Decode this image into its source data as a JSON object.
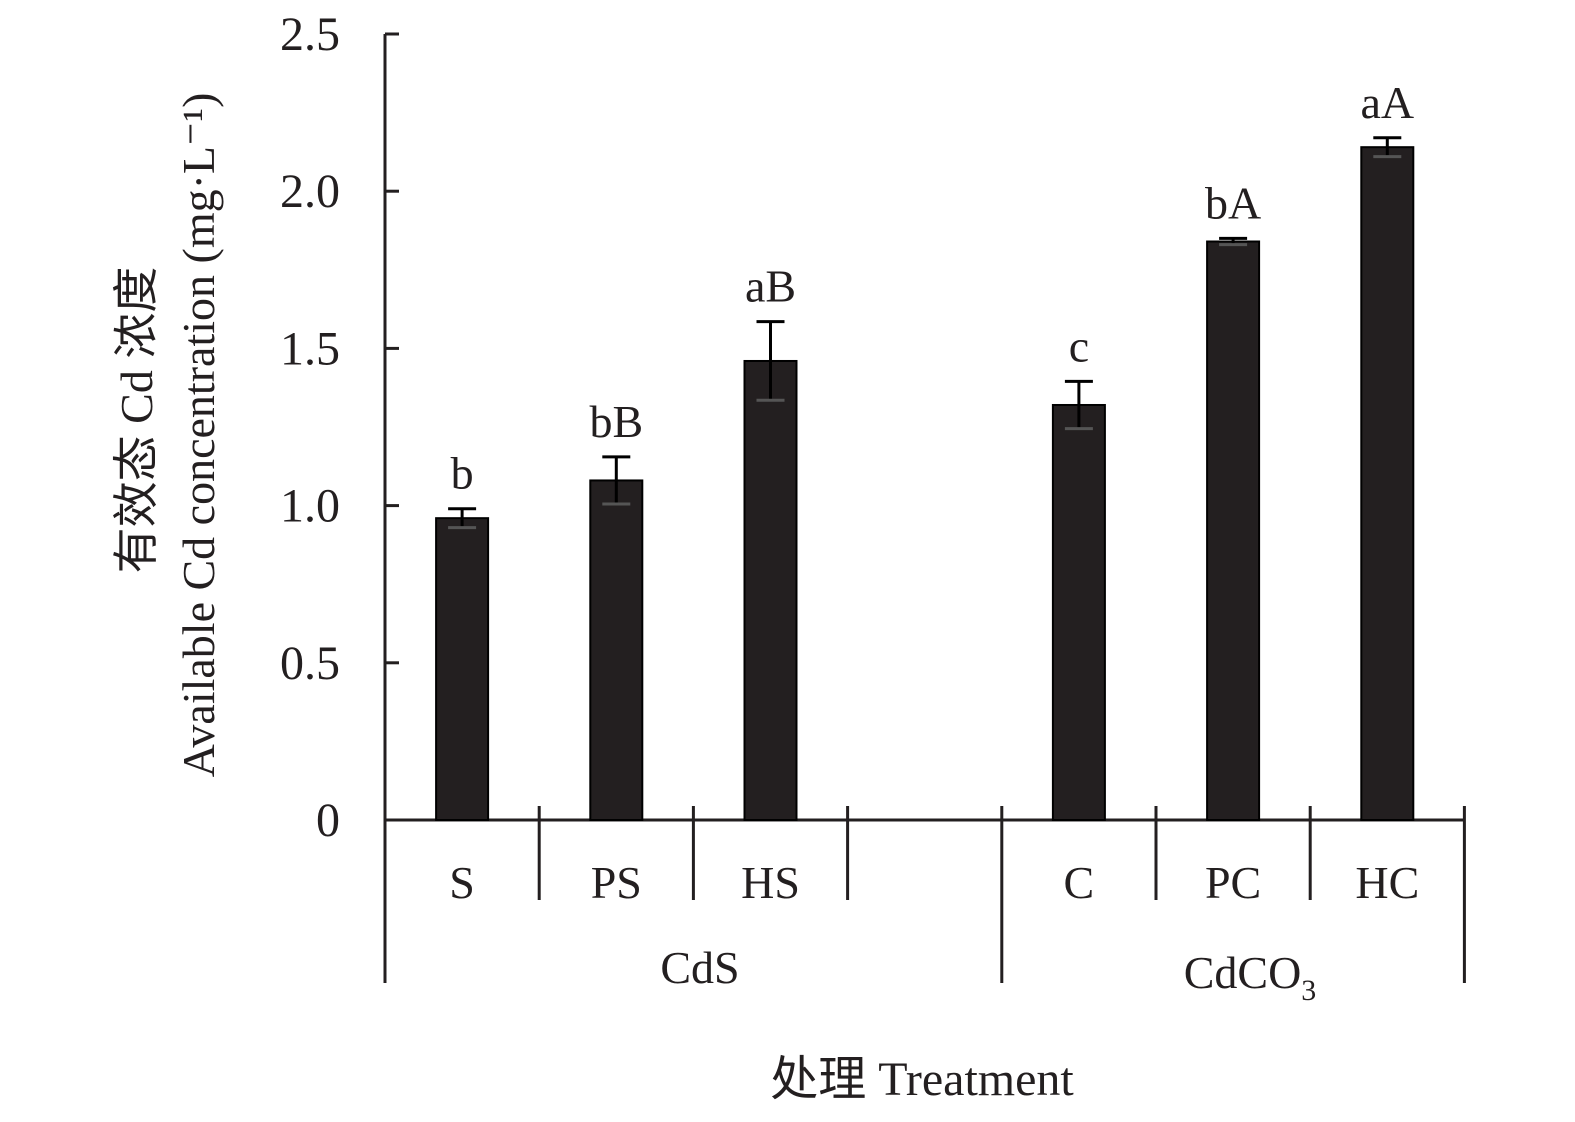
{
  "chart_data": {
    "type": "bar",
    "ylabel_zh": "有效态 Cd 浓度",
    "ylabel_en": "Available Cd concentration (mg·L⁻¹)",
    "xlabel": "处理 Treatment",
    "ylim": [
      0,
      2.5
    ],
    "yticks": [
      "0",
      "0.5",
      "1.0",
      "1.5",
      "2.0",
      "2.5"
    ],
    "grid": false,
    "groups": [
      {
        "name": "CdS",
        "categories": [
          "S",
          "PS",
          "HS"
        ],
        "values": [
          0.96,
          1.08,
          1.46
        ],
        "errors": [
          0.03,
          0.075,
          0.125
        ],
        "labels": [
          "b",
          "bB",
          "aB"
        ]
      },
      {
        "name": "CdCO3",
        "name_main": "CdCO",
        "name_sub": "3",
        "categories": [
          "C",
          "PC",
          "HC"
        ],
        "values": [
          1.32,
          1.84,
          2.14
        ],
        "errors": [
          0.075,
          0.01,
          0.03
        ],
        "labels": [
          "c",
          "bA",
          "aA"
        ]
      }
    ],
    "bar_color": "#231f20",
    "axis_color": "#231f20"
  }
}
